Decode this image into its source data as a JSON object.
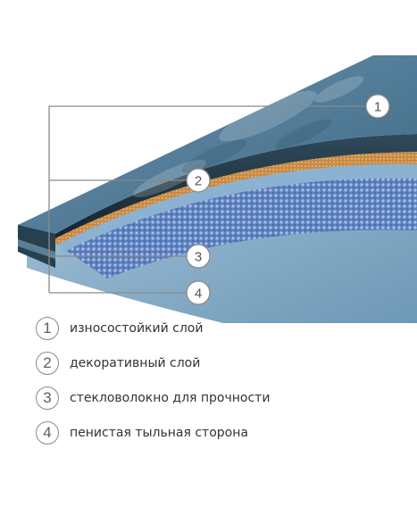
{
  "callouts": [
    {
      "number": "1"
    },
    {
      "number": "2"
    },
    {
      "number": "3"
    },
    {
      "number": "4"
    }
  ],
  "legend": [
    {
      "number": "1",
      "label": "износостойкий слой"
    },
    {
      "number": "2",
      "label": "декоративный слой"
    },
    {
      "number": "3",
      "label": "стекловолокно для прочности"
    },
    {
      "number": "4",
      "label": "пенистая тыльная сторона"
    }
  ],
  "colors": {
    "wear_layer": "#4f7a96",
    "decor_layer": "#c88a45",
    "fiberglass": "#5b7fbe",
    "backing": "#7fa7c4",
    "edge_dark": "#1c2a33",
    "leader_lines": "#8a8a8a"
  }
}
